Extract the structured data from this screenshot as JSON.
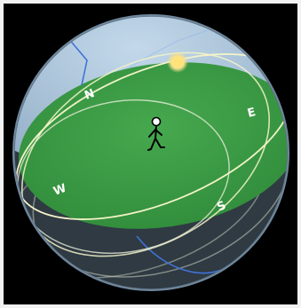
{
  "compass": {
    "north": "N",
    "east": "E",
    "south": "S",
    "west": "W"
  },
  "colors": {
    "background": "#000000",
    "sky": "#a9c4dc",
    "ground_plane": "#3f9e47",
    "below_horizon": "#2f3a43",
    "sun": "#f6e08a",
    "sun_path": "#f3f3c8",
    "celestial_axis": "#3f73d8"
  },
  "icons": [
    "sun-icon",
    "stick-figure-observer-icon"
  ]
}
